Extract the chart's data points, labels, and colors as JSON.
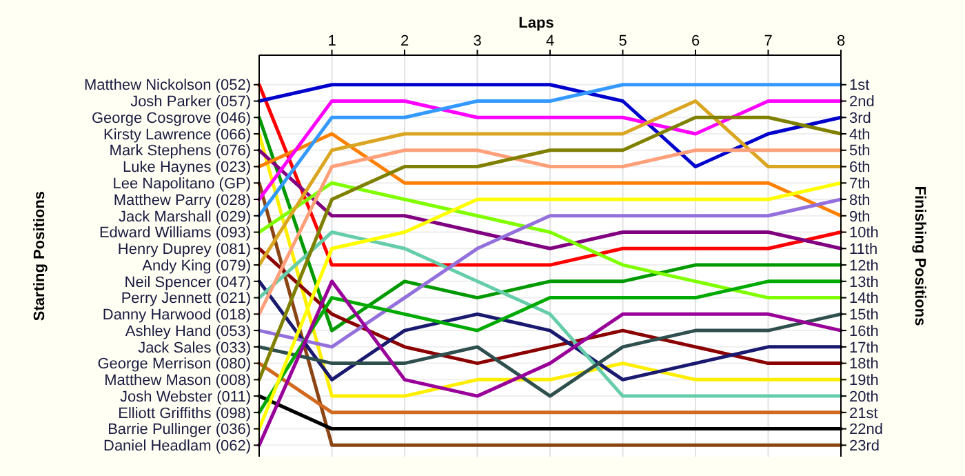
{
  "chart_data": {
    "type": "line",
    "xlabel": "Laps",
    "annotations": [
      "Starting Positions"
    ],
    "y2label": "Finishing Positions",
    "x": [
      0,
      1,
      2,
      3,
      4,
      5,
      6,
      7,
      8
    ],
    "xlim": [
      0,
      8
    ],
    "xticks": [
      1,
      2,
      3,
      4,
      5,
      6,
      7,
      8
    ],
    "y_categories": [
      "Matthew Nickolson (052)",
      "Josh Parker (057)",
      "George Cosgrove (046)",
      "Kirsty Lawrence (066)",
      "Mark Stephens (076)",
      "Luke Haynes (023)",
      "Lee Napolitano (GP)",
      "Matthew Parry (028)",
      "Jack Marshall (029)",
      "Edward Williams (093)",
      "Henry Duprey (081)",
      "Andy King (079)",
      "Neil Spencer (047)",
      "Perry Jennett (021)",
      "Danny Harwood (018)",
      "Ashley Hand (053)",
      "Jack Sales (033)",
      "George Merrison (080)",
      "Matthew Mason (008)",
      "Josh Webster (011)",
      "Elliott Griffiths (098)",
      "Barrie Pullinger (036)",
      "Daniel Headlam (062)"
    ],
    "y2lim": [
      23.7,
      -0.8
    ],
    "y2ticks": [
      {
        "value": 1,
        "label": "1st"
      },
      {
        "value": 2,
        "label": "2nd"
      },
      {
        "value": 3,
        "label": "3rd"
      },
      {
        "value": 4,
        "label": "4th"
      },
      {
        "value": 5,
        "label": "5th"
      },
      {
        "value": 6,
        "label": "6th"
      },
      {
        "value": 7,
        "label": "7th"
      },
      {
        "value": 8,
        "label": "8th"
      },
      {
        "value": 9,
        "label": "9th"
      },
      {
        "value": 10,
        "label": "10th"
      },
      {
        "value": 11,
        "label": "11th"
      },
      {
        "value": 12,
        "label": "12th"
      },
      {
        "value": 13,
        "label": "13th"
      },
      {
        "value": 14,
        "label": "14th"
      },
      {
        "value": 15,
        "label": "15th"
      },
      {
        "value": 16,
        "label": "16th"
      },
      {
        "value": 17,
        "label": "17th"
      },
      {
        "value": 18,
        "label": "18th"
      },
      {
        "value": 19,
        "label": "19th"
      },
      {
        "value": 20,
        "label": "20th"
      },
      {
        "value": 21,
        "label": "21st"
      },
      {
        "value": 22,
        "label": "22nd"
      },
      {
        "value": 23,
        "label": "23rd"
      }
    ],
    "grid": true,
    "marker": "none",
    "line_style": "solid",
    "series": [
      {
        "axis": "y2",
        "color": "#ff0000",
        "values": [
          1,
          12,
          12,
          12,
          12,
          11,
          11,
          11,
          10
        ]
      },
      {
        "axis": "y2",
        "color": "#0000cc",
        "values": [
          2,
          1,
          1,
          1,
          1,
          2,
          6,
          4,
          3
        ]
      },
      {
        "axis": "y2",
        "color": "#009900",
        "values": [
          3,
          16,
          13,
          14,
          13,
          13,
          12,
          12,
          12
        ]
      },
      {
        "axis": "y2",
        "color": "#ffee00",
        "values": [
          4,
          20,
          20,
          19,
          19,
          18,
          19,
          19,
          19
        ]
      },
      {
        "axis": "y2",
        "color": "#800080",
        "values": [
          5,
          9,
          9,
          10,
          11,
          10,
          10,
          10,
          11
        ]
      },
      {
        "axis": "y2",
        "color": "#ff8000",
        "values": [
          6,
          4,
          7,
          7,
          7,
          7,
          7,
          7,
          9
        ]
      },
      {
        "axis": "y2",
        "color": "#8b4513",
        "values": [
          7,
          23,
          23,
          23,
          23,
          23,
          23,
          23,
          23
        ]
      },
      {
        "axis": "y2",
        "color": "#ff00ff",
        "values": [
          8,
          2,
          2,
          3,
          3,
          3,
          4,
          2,
          2
        ]
      },
      {
        "axis": "y2",
        "color": "#3399ff",
        "values": [
          9,
          3,
          3,
          2,
          2,
          1,
          1,
          1,
          1
        ]
      },
      {
        "axis": "y2",
        "color": "#80ff00",
        "values": [
          10,
          7,
          8,
          9,
          10,
          12,
          13,
          14,
          14
        ]
      },
      {
        "axis": "y2",
        "color": "#8b0000",
        "values": [
          11,
          15,
          17,
          18,
          17,
          16,
          17,
          18,
          18
        ]
      },
      {
        "axis": "y2",
        "color": "#daa520",
        "values": [
          12,
          5,
          4,
          4,
          4,
          4,
          2,
          6,
          6
        ]
      },
      {
        "axis": "y2",
        "color": "#191970",
        "values": [
          13,
          19,
          16,
          15,
          16,
          19,
          18,
          17,
          17
        ]
      },
      {
        "axis": "y2",
        "color": "#66cdaa",
        "values": [
          14,
          10,
          11,
          13,
          15,
          20,
          20,
          20,
          20
        ]
      },
      {
        "axis": "y2",
        "color": "#ffa07a",
        "values": [
          15,
          6,
          5,
          5,
          6,
          6,
          5,
          5,
          5
        ]
      },
      {
        "axis": "y2",
        "color": "#9370db",
        "values": [
          16,
          17,
          14,
          11,
          9,
          9,
          9,
          9,
          8
        ]
      },
      {
        "axis": "y2",
        "color": "#2f4f4f",
        "values": [
          17,
          18,
          18,
          17,
          20,
          17,
          16,
          16,
          15
        ]
      },
      {
        "axis": "y2",
        "color": "#d2691e",
        "values": [
          18,
          21,
          21,
          21,
          21,
          21,
          21,
          21,
          21
        ]
      },
      {
        "axis": "y2",
        "color": "#808000",
        "values": [
          19,
          8,
          6,
          6,
          5,
          5,
          3,
          3,
          4
        ]
      },
      {
        "axis": "y2",
        "color": "#000000",
        "values": [
          20,
          22,
          22,
          22,
          22,
          22,
          22,
          22,
          22
        ]
      },
      {
        "axis": "y2",
        "color": "#00aa00",
        "values": [
          21,
          14,
          15,
          16,
          14,
          14,
          14,
          13,
          13
        ]
      },
      {
        "axis": "y2",
        "color": "#ffff00",
        "values": [
          22,
          11,
          10,
          8,
          8,
          8,
          8,
          8,
          7
        ]
      },
      {
        "axis": "y2",
        "color": "#990099",
        "values": [
          23,
          13,
          19,
          20,
          18,
          15,
          15,
          15,
          16
        ]
      }
    ]
  }
}
